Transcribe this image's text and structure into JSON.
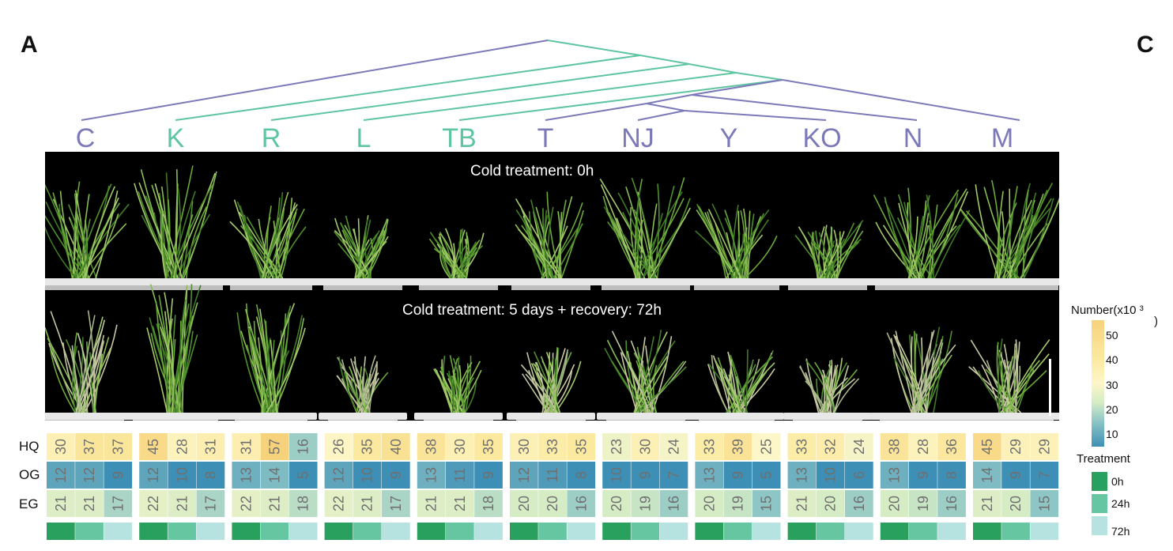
{
  "panel_letters": {
    "left": "A",
    "right": "C"
  },
  "colors": {
    "group1": "#7b79b8",
    "group2": "#5ec5a0",
    "t0h": "#2aa05f",
    "t24h": "#66c6a2",
    "t72h": "#b6e3e0"
  },
  "varieties": [
    {
      "label": "C",
      "group": 1
    },
    {
      "label": "K",
      "group": 2
    },
    {
      "label": "R",
      "group": 2
    },
    {
      "label": "L",
      "group": 2
    },
    {
      "label": "TB",
      "group": 2
    },
    {
      "label": "T",
      "group": 1
    },
    {
      "label": "NJ",
      "group": 1
    },
    {
      "label": "Y",
      "group": 1
    },
    {
      "label": "KO",
      "group": 1
    },
    {
      "label": "N",
      "group": 1
    },
    {
      "label": "M",
      "group": 1
    }
  ],
  "photo": {
    "caption_top": "Cold treatment: 0h",
    "caption_bottom": "Cold treatment: 5 days  + recovery: 72h"
  },
  "rows": [
    "HQ",
    "OG",
    "EG"
  ],
  "heatmap": {
    "HQ": [
      [
        30,
        37,
        37
      ],
      [
        45,
        28,
        31
      ],
      [
        31,
        57,
        16
      ],
      [
        26,
        35,
        40
      ],
      [
        38,
        30,
        35
      ],
      [
        30,
        33,
        35
      ],
      [
        23,
        30,
        24
      ],
      [
        33,
        39,
        25
      ],
      [
        33,
        32,
        24
      ],
      [
        38,
        28,
        36
      ],
      [
        45,
        29,
        29
      ]
    ],
    "OG": [
      [
        12,
        12,
        9
      ],
      [
        12,
        10,
        8
      ],
      [
        13,
        14,
        5
      ],
      [
        12,
        10,
        9
      ],
      [
        13,
        11,
        9
      ],
      [
        12,
        11,
        8
      ],
      [
        10,
        9,
        7
      ],
      [
        13,
        9,
        5
      ],
      [
        13,
        10,
        6
      ],
      [
        13,
        9,
        8
      ],
      [
        14,
        9,
        7
      ]
    ],
    "EG": [
      [
        21,
        21,
        17
      ],
      [
        22,
        21,
        17
      ],
      [
        22,
        21,
        18
      ],
      [
        22,
        21,
        17
      ],
      [
        21,
        21,
        18
      ],
      [
        20,
        20,
        16
      ],
      [
        20,
        19,
        16
      ],
      [
        20,
        19,
        15
      ],
      [
        21,
        20,
        16
      ],
      [
        20,
        19,
        16
      ],
      [
        21,
        20,
        15
      ]
    ]
  },
  "legend": {
    "title": "Number(x10 ³",
    "title_close": ")",
    "ticks": [
      "50",
      "40",
      "30",
      "20",
      "10"
    ],
    "treatment_title": "Treatment",
    "treatments": [
      "0h",
      "24h",
      "72h"
    ]
  }
}
